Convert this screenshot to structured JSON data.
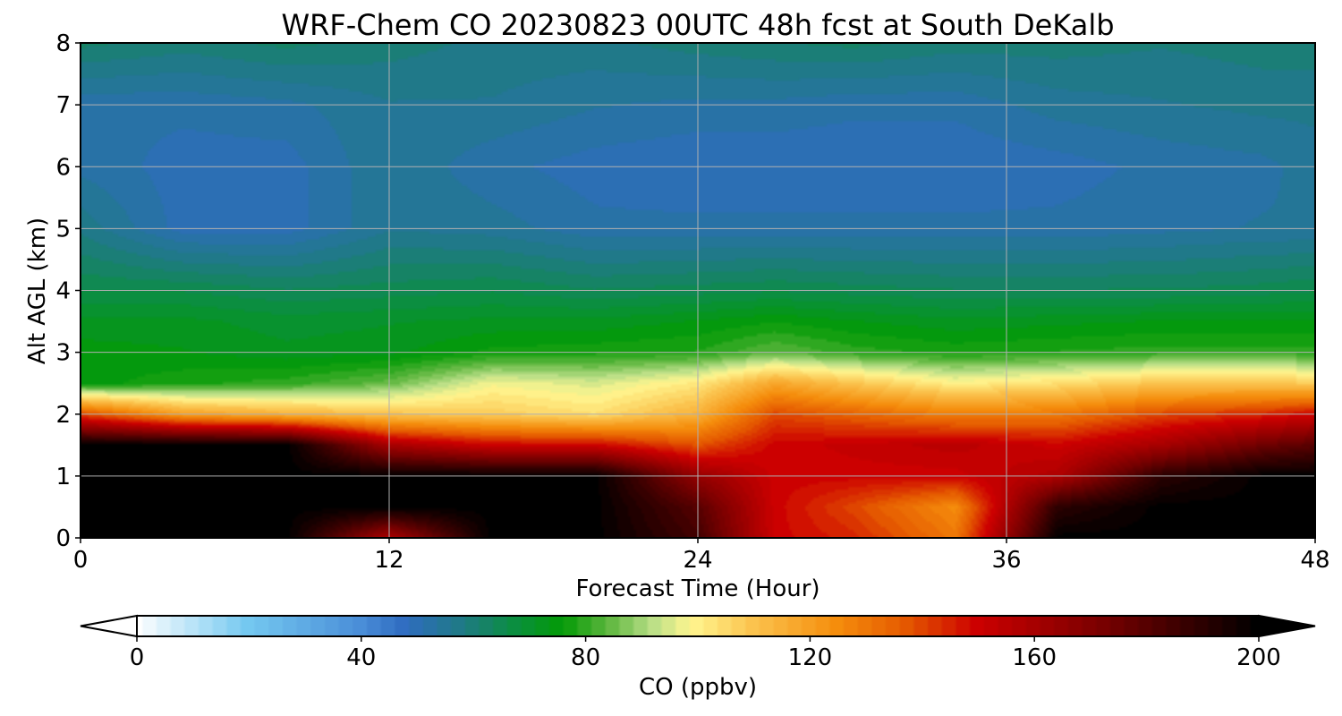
{
  "chart_data": {
    "type": "heatmap",
    "title": "WRF-Chem CO  20230823 00UTC 48h fcst at South DeKalb",
    "xlabel": "Forecast Time (Hour)",
    "ylabel": "Alt AGL (km)",
    "xlim": [
      0,
      48
    ],
    "ylim": [
      0,
      8
    ],
    "x_ticks": [
      "0",
      "12",
      "24",
      "36",
      "48"
    ],
    "y_ticks": [
      "0",
      "1",
      "2",
      "3",
      "4",
      "5",
      "6",
      "7",
      "8"
    ],
    "grid": true,
    "colorbar": {
      "label": "CO  (ppbv)",
      "range": [
        0,
        200
      ],
      "extend": "both",
      "ticks": [
        "0",
        "40",
        "80",
        "120",
        "160",
        "200"
      ],
      "stops": [
        {
          "v": 0,
          "c": "#ffffff"
        },
        {
          "v": 20,
          "c": "#74c8f0"
        },
        {
          "v": 40,
          "c": "#4a8ed8"
        },
        {
          "v": 48,
          "c": "#2f6cc0"
        },
        {
          "v": 58,
          "c": "#1f7a86"
        },
        {
          "v": 68,
          "c": "#0a8f3c"
        },
        {
          "v": 76,
          "c": "#039a06"
        },
        {
          "v": 84,
          "c": "#5ab53c"
        },
        {
          "v": 92,
          "c": "#b8de86"
        },
        {
          "v": 99,
          "c": "#fff690"
        },
        {
          "v": 110,
          "c": "#fbc34e"
        },
        {
          "v": 125,
          "c": "#f58d0c"
        },
        {
          "v": 137,
          "c": "#e55a00"
        },
        {
          "v": 150,
          "c": "#cc0000"
        },
        {
          "v": 172,
          "c": "#7a0000"
        },
        {
          "v": 200,
          "c": "#000000"
        }
      ]
    },
    "field": {
      "description_units": "CO (ppbv) vs forecast hour and altitude",
      "hours": [
        0,
        4,
        8,
        12,
        16,
        20,
        24,
        27,
        30,
        34,
        38,
        42,
        46,
        48
      ],
      "heights": [
        0,
        0.5,
        1.0,
        1.5,
        2.0,
        2.5,
        3.0,
        3.5,
        4.0,
        5.0,
        6.0,
        7.0,
        8.0
      ],
      "values": [
        [
          200,
          200,
          200,
          158,
          200,
          200,
          185,
          150,
          145,
          130,
          200,
          200,
          200,
          200
        ],
        [
          200,
          200,
          200,
          200,
          200,
          200,
          180,
          150,
          140,
          125,
          190,
          200,
          200,
          200
        ],
        [
          200,
          200,
          200,
          200,
          200,
          200,
          165,
          150,
          150,
          150,
          158,
          190,
          200,
          200
        ],
        [
          200,
          200,
          200,
          160,
          150,
          150,
          138,
          150,
          152,
          155,
          150,
          160,
          175,
          180
        ],
        [
          140,
          120,
          115,
          110,
          108,
          104,
          115,
          140,
          135,
          128,
          130,
          140,
          145,
          150
        ],
        [
          75,
          78,
          80,
          85,
          98,
          95,
          102,
          118,
          110,
          100,
          104,
          110,
          110,
          108
        ],
        [
          75,
          74,
          72,
          73,
          77,
          78,
          79,
          84,
          80,
          78,
          79,
          80,
          80,
          80
        ],
        [
          72,
          72,
          70,
          71,
          72,
          72,
          74,
          76,
          74,
          72,
          73,
          74,
          74,
          74
        ],
        [
          66,
          66,
          64,
          65,
          66,
          64,
          65,
          66,
          65,
          64,
          64,
          64,
          65,
          66
        ],
        [
          58,
          50,
          50,
          56,
          55,
          52,
          52,
          52,
          52,
          52,
          52,
          53,
          54,
          54
        ],
        [
          53,
          50,
          50,
          56,
          52,
          50,
          49,
          49,
          49,
          49,
          50,
          52,
          53,
          55
        ],
        [
          52,
          52,
          53,
          56,
          56,
          54,
          53,
          53,
          52,
          52,
          55,
          56,
          57,
          57
        ],
        [
          62,
          60,
          62,
          60,
          58,
          58,
          60,
          61,
          62,
          60,
          60,
          59,
          60,
          60
        ]
      ]
    }
  }
}
